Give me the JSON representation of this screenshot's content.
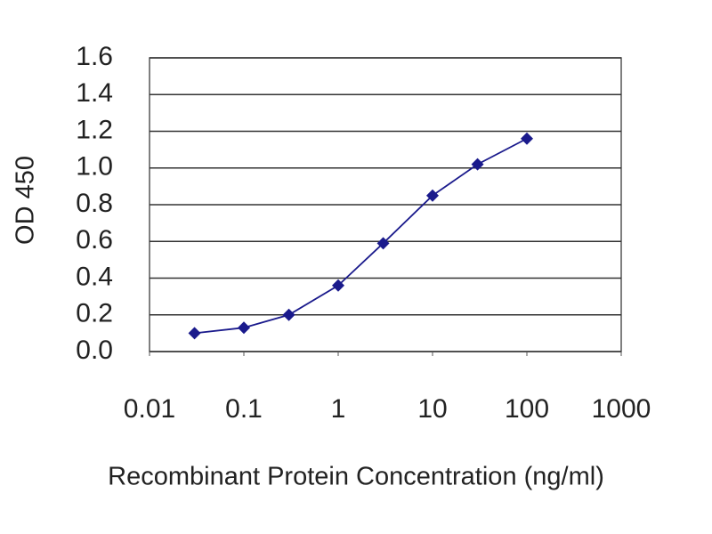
{
  "chart_data": {
    "type": "line",
    "xlabel": "Recombinant Protein Concentration (ng/ml)",
    "ylabel": "OD 450",
    "x": [
      0.03,
      0.1,
      0.3,
      1,
      3,
      10,
      30,
      100
    ],
    "series": [
      {
        "color": "#1a1a8c",
        "values": [
          0.1,
          0.13,
          0.2,
          0.36,
          0.59,
          0.85,
          1.02,
          1.16
        ]
      }
    ],
    "xscale": "log",
    "xlim": [
      0.01,
      1000
    ],
    "xticks": [
      0.01,
      0.1,
      1,
      10,
      100,
      1000
    ],
    "ylim": [
      0,
      1.6
    ],
    "yticks": [
      {
        "value": 0,
        "label": "0.0"
      },
      0.2,
      0.4,
      0.6,
      0.8,
      {
        "value": 1,
        "label": "1.0"
      },
      1.2,
      1.4,
      1.6
    ],
    "grid": true
  }
}
